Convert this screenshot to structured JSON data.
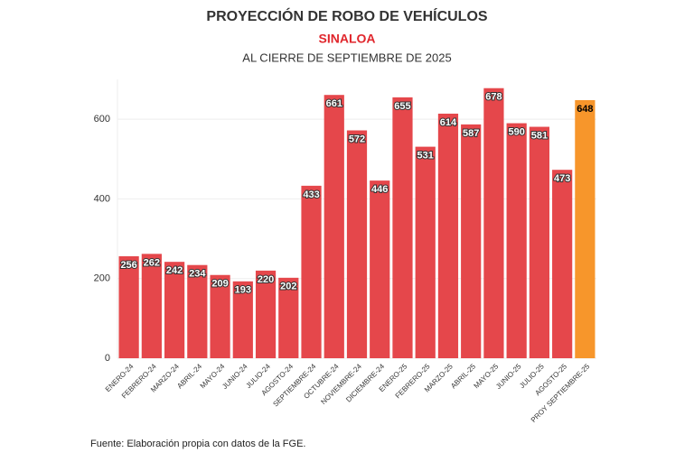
{
  "chart_data": {
    "type": "bar",
    "title": "PROYECCIÓN DE ROBO DE VEHÍCULOS",
    "subtitle": "SINALOA",
    "caption": "AL CIERRE DE SEPTIEMBRE DE 2025",
    "source": "Fuente: Elaboración propia con datos de la FGE.",
    "categories": [
      "ENERO-24",
      "FEBRERO-24",
      "MARZO-24",
      "ABRIL-24",
      "MAYO-24",
      "JUNIO-24",
      "JULIO-24",
      "AGOSTO-24",
      "SEPTIEMBRE-24",
      "OCTUBRE-24",
      "NOVIEMBRE-24",
      "DICIEMBRE-24",
      "ENERO-25",
      "FEBRERO-25",
      "MARZO-25",
      "ABRIL-25",
      "MAYO-25",
      "JUNIO-25",
      "JULIO-25",
      "AGOSTO-25",
      "PROY SEPTIEMBRE-25"
    ],
    "values": [
      256,
      262,
      242,
      234,
      209,
      193,
      220,
      202,
      433,
      661,
      572,
      446,
      655,
      531,
      614,
      587,
      678,
      590,
      581,
      473,
      648
    ],
    "colors": [
      "#e5474b",
      "#e5474b",
      "#e5474b",
      "#e5474b",
      "#e5474b",
      "#e5474b",
      "#e5474b",
      "#e5474b",
      "#e5474b",
      "#e5474b",
      "#e5474b",
      "#e5474b",
      "#e5474b",
      "#e5474b",
      "#e5474b",
      "#e5474b",
      "#e5474b",
      "#e5474b",
      "#e5474b",
      "#e5474b",
      "#f7962b"
    ],
    "value_label_colors": [
      "#ffffff",
      "#ffffff",
      "#ffffff",
      "#ffffff",
      "#ffffff",
      "#ffffff",
      "#ffffff",
      "#ffffff",
      "#ffffff",
      "#ffffff",
      "#ffffff",
      "#ffffff",
      "#ffffff",
      "#ffffff",
      "#ffffff",
      "#ffffff",
      "#ffffff",
      "#ffffff",
      "#ffffff",
      "#ffffff",
      "#000000"
    ],
    "ylim": [
      0,
      700
    ],
    "yticks": [
      0,
      200,
      400,
      600
    ],
    "grid": true
  }
}
